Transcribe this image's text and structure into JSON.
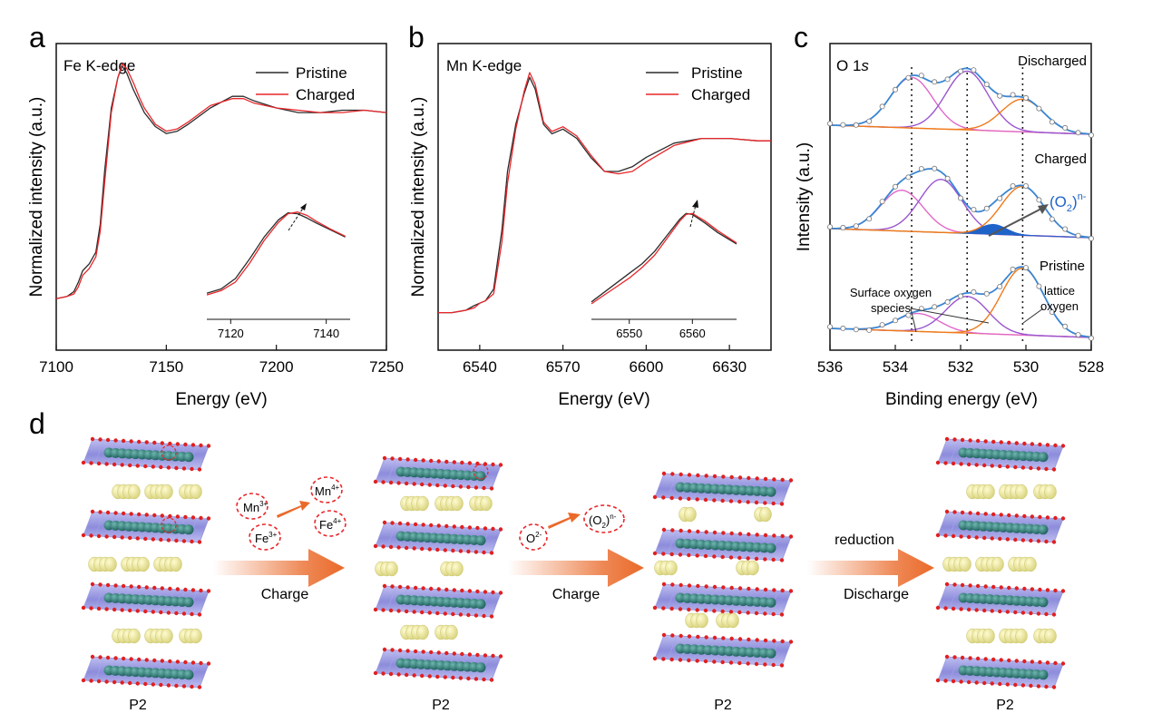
{
  "panels": {
    "a": {
      "letter": "a",
      "element": "Fe K-edge",
      "xlabel": "Energy (eV)",
      "ylabel": "Normalized intensity (a.u.)"
    },
    "b": {
      "letter": "b",
      "element": "Mn K-edge",
      "xlabel": "Energy (eV)",
      "ylabel": "Normalized intensity (a.u.)"
    },
    "c": {
      "letter": "c",
      "title_main": "O 1",
      "title_italic": "s",
      "xlabel": "Binding energy (eV)",
      "ylabel": "Intensity (a.u.)",
      "state_discharged": "Discharged",
      "state_charged": "Charged",
      "state_pristine": "Pristine",
      "o2_label_main": "(O",
      "o2_label_sub": "2",
      "o2_label_close": ")",
      "o2_label_sup": "n-",
      "surface_line1": "Surface oxygen",
      "surface_line2": "species",
      "lattice_line1": "lattice",
      "lattice_line2": "oxygen"
    },
    "d": {
      "letter": "d",
      "p2": "P2",
      "mn3": "Mn",
      "mn3_sup": "3+",
      "mn4": "Mn",
      "mn4_sup": "4+",
      "fe3": "Fe",
      "fe3_sup": "3+",
      "fe4": "Fe",
      "fe4_sup": "4+",
      "o2minus": "O",
      "o2minus_sup": "2-",
      "o2n_main": "(O",
      "o2n_sub": "2",
      "o2n_close": ")",
      "o2n_sup": "n-",
      "arrow1": "Charge",
      "arrow2": "Charge",
      "arrow3_top": "reduction",
      "arrow3": "Discharge"
    }
  },
  "legend": {
    "pristine": "Pristine",
    "charged": "Charged"
  },
  "colors": {
    "pristine": "#2b2b2b",
    "charged": "#e8262a",
    "fit": "#3a86d4",
    "lattice": "#f07a1a",
    "surface1": "#e068c8",
    "surface2": "#9a55d0",
    "peroxo": "#1f63c9",
    "arrow": "#ea6a2a"
  },
  "chart_data": [
    {
      "type": "line",
      "title": "Fe K-edge",
      "xlabel": "Energy (eV)",
      "ylabel": "Normalized intensity (a.u.)",
      "xlim": [
        7100,
        7250
      ],
      "xticks": [
        7100,
        7150,
        7200,
        7250
      ],
      "legend": "top-right",
      "series": [
        {
          "name": "Pristine",
          "x": [
            7100,
            7105,
            7108,
            7110,
            7112,
            7115,
            7118,
            7120,
            7122,
            7125,
            7128,
            7130,
            7132,
            7135,
            7138,
            7140,
            7145,
            7150,
            7155,
            7160,
            7170,
            7180,
            7185,
            7190,
            7200,
            7210,
            7220,
            7230,
            7240,
            7250
          ],
          "y": [
            0.0,
            0.01,
            0.03,
            0.07,
            0.12,
            0.15,
            0.2,
            0.32,
            0.55,
            0.82,
            0.95,
            1.0,
            0.97,
            0.9,
            0.84,
            0.8,
            0.74,
            0.71,
            0.72,
            0.75,
            0.82,
            0.87,
            0.87,
            0.85,
            0.82,
            0.8,
            0.8,
            0.81,
            0.81,
            0.8
          ]
        },
        {
          "name": "Charged",
          "x": [
            7100,
            7105,
            7108,
            7110,
            7112,
            7115,
            7118,
            7120,
            7122,
            7125,
            7128,
            7130,
            7132,
            7135,
            7138,
            7140,
            7145,
            7150,
            7155,
            7160,
            7170,
            7180,
            7185,
            7190,
            7200,
            7210,
            7220,
            7230,
            7240,
            7250
          ],
          "y": [
            0.0,
            0.01,
            0.02,
            0.05,
            0.1,
            0.13,
            0.18,
            0.29,
            0.5,
            0.8,
            0.95,
            1.01,
            0.99,
            0.93,
            0.86,
            0.82,
            0.75,
            0.72,
            0.73,
            0.76,
            0.83,
            0.86,
            0.86,
            0.84,
            0.82,
            0.81,
            0.8,
            0.8,
            0.81,
            0.8
          ]
        }
      ],
      "inset": {
        "xlim": [
          7115,
          7145
        ],
        "xticks": [
          7120,
          7140
        ],
        "series": [
          {
            "name": "Pristine",
            "x": [
              7115,
              7118,
              7121,
              7124,
              7127,
              7130,
              7132,
              7134,
              7136,
              7138,
              7141,
              7144
            ],
            "y": [
              0.05,
              0.1,
              0.22,
              0.45,
              0.7,
              0.9,
              0.98,
              0.97,
              0.92,
              0.86,
              0.78,
              0.7
            ]
          },
          {
            "name": "Charged",
            "x": [
              7115,
              7118,
              7121,
              7124,
              7127,
              7130,
              7132,
              7134,
              7136,
              7138,
              7141,
              7144
            ],
            "y": [
              0.03,
              0.08,
              0.18,
              0.4,
              0.66,
              0.87,
              0.97,
              0.99,
              0.95,
              0.88,
              0.79,
              0.71
            ]
          }
        ]
      }
    },
    {
      "type": "line",
      "title": "Mn K-edge",
      "xlabel": "Energy (eV)",
      "ylabel": "Normalized intensity (a.u.)",
      "xlim": [
        6525,
        6645
      ],
      "xticks": [
        6540,
        6570,
        6600,
        6630
      ],
      "legend": "top-right",
      "series": [
        {
          "name": "Pristine",
          "x": [
            6525,
            6530,
            6535,
            6538,
            6540,
            6542,
            6545,
            6548,
            6550,
            6553,
            6556,
            6558,
            6560,
            6563,
            6566,
            6570,
            6575,
            6580,
            6585,
            6590,
            6595,
            6600,
            6610,
            6620,
            6630,
            6640,
            6645
          ],
          "y": [
            0.0,
            0.0,
            0.01,
            0.03,
            0.04,
            0.05,
            0.1,
            0.35,
            0.6,
            0.8,
            0.93,
            1.0,
            0.95,
            0.8,
            0.76,
            0.78,
            0.74,
            0.66,
            0.6,
            0.6,
            0.62,
            0.66,
            0.72,
            0.74,
            0.74,
            0.73,
            0.73
          ]
        },
        {
          "name": "Charged",
          "x": [
            6525,
            6530,
            6535,
            6538,
            6540,
            6542,
            6545,
            6548,
            6550,
            6553,
            6556,
            6558,
            6560,
            6563,
            6566,
            6570,
            6575,
            6580,
            6585,
            6590,
            6595,
            6600,
            6610,
            6620,
            6630,
            6640,
            6645
          ],
          "y": [
            0.0,
            0.0,
            0.01,
            0.02,
            0.04,
            0.05,
            0.08,
            0.3,
            0.55,
            0.78,
            0.94,
            1.02,
            0.97,
            0.81,
            0.77,
            0.79,
            0.75,
            0.67,
            0.6,
            0.59,
            0.6,
            0.64,
            0.71,
            0.74,
            0.74,
            0.73,
            0.73
          ]
        }
      ],
      "inset": {
        "xlim": [
          6544,
          6567
        ],
        "xticks": [
          6550,
          6560
        ],
        "series": [
          {
            "name": "Pristine",
            "x": [
              6544,
              6546,
              6548,
              6550,
              6552,
              6554,
              6556,
              6558,
              6559,
              6560,
              6562,
              6564,
              6567
            ],
            "y": [
              0.05,
              0.15,
              0.25,
              0.35,
              0.45,
              0.58,
              0.75,
              0.92,
              0.98,
              0.97,
              0.88,
              0.78,
              0.66
            ]
          },
          {
            "name": "Charged",
            "x": [
              6544,
              6546,
              6548,
              6550,
              6552,
              6554,
              6556,
              6558,
              6559,
              6560,
              6562,
              6564,
              6567
            ],
            "y": [
              0.03,
              0.12,
              0.21,
              0.3,
              0.41,
              0.54,
              0.72,
              0.9,
              0.97,
              0.98,
              0.9,
              0.8,
              0.67
            ]
          }
        ]
      }
    },
    {
      "type": "line",
      "title": "O 1s",
      "xlabel": "Binding energy (eV)",
      "ylabel": "Intensity (a.u.)",
      "xlim": [
        536,
        528
      ],
      "xticks": [
        536,
        534,
        532,
        530,
        528
      ],
      "reference_lines": [
        533.5,
        531.8,
        530.1
      ],
      "series": [
        {
          "name": "Discharged",
          "peaks": [
            {
              "center": 533.5,
              "height": 0.62
            },
            {
              "center": 531.8,
              "height": 0.72
            },
            {
              "center": 530.1,
              "height": 0.4
            }
          ]
        },
        {
          "name": "Charged",
          "peaks": [
            {
              "center": 533.8,
              "height": 0.5
            },
            {
              "center": 532.6,
              "height": 0.65
            },
            {
              "center": 531.0,
              "height": 0.12
            },
            {
              "center": 530.1,
              "height": 0.6
            }
          ]
        },
        {
          "name": "Pristine",
          "peaks": [
            {
              "center": 533.3,
              "height": 0.22
            },
            {
              "center": 531.8,
              "height": 0.45
            },
            {
              "center": 530.1,
              "height": 0.82
            }
          ]
        }
      ]
    }
  ]
}
